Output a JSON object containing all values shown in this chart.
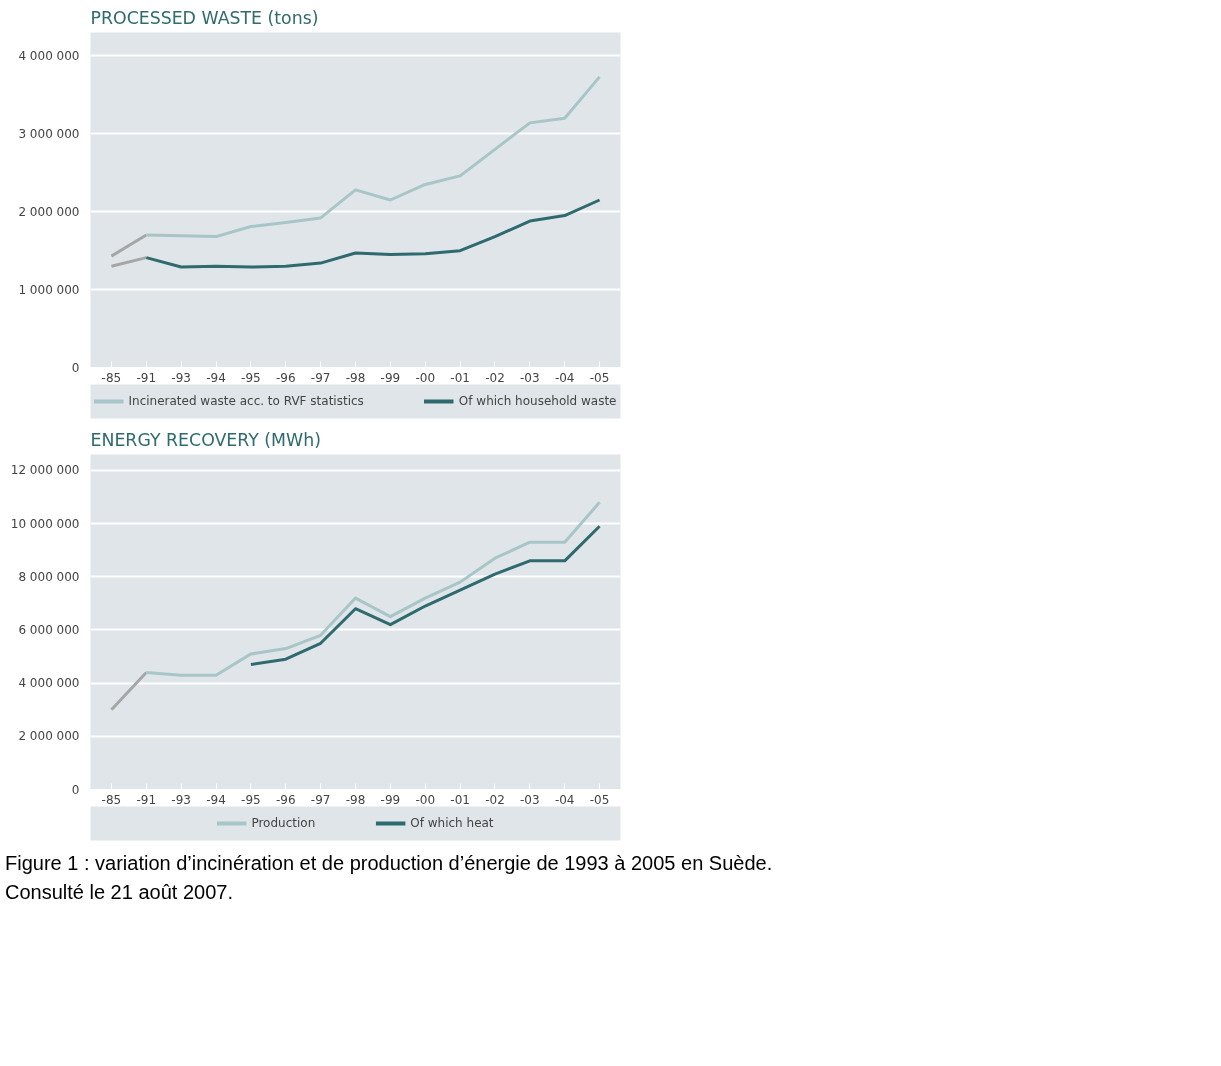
{
  "chart_data": [
    {
      "type": "line",
      "title": "PROCESSED WASTE (tons)",
      "categories": [
        "-85",
        "-91",
        "-93",
        "-94",
        "-95",
        "-96",
        "-97",
        "-98",
        "-99",
        "-00",
        "-01",
        "-02",
        "-03",
        "-04",
        "-05"
      ],
      "series": [
        {
          "color": "#a6a6a6",
          "values": [
            1430000,
            1700000,
            null,
            null,
            null,
            null,
            null,
            null,
            null,
            null,
            null,
            null,
            null,
            null,
            null
          ]
        },
        {
          "color": "#a6a6a6",
          "values": [
            1300000,
            1410000,
            null,
            null,
            null,
            null,
            null,
            null,
            null,
            null,
            null,
            null,
            null,
            null,
            null
          ]
        },
        {
          "name": "Incinerated waste acc. to RVF statistics",
          "color": "#a8c6c8",
          "values": [
            null,
            1700000,
            1690000,
            1680000,
            1810000,
            1860000,
            1920000,
            2280000,
            2150000,
            2350000,
            2460000,
            2800000,
            3140000,
            3200000,
            3730000
          ]
        },
        {
          "name": "Of which household waste",
          "color": "#2f6b6e",
          "values": [
            null,
            1410000,
            1290000,
            1300000,
            1290000,
            1300000,
            1340000,
            1470000,
            1450000,
            1460000,
            1500000,
            1680000,
            1880000,
            1950000,
            2150000
          ]
        }
      ],
      "ylim": [
        0,
        4300000
      ],
      "yticks": [
        0,
        {
          "value": 1000000,
          "label": "1 000 000"
        },
        {
          "value": 2000000,
          "label": "2 000 000"
        },
        {
          "value": 3000000,
          "label": "3 000 000"
        },
        {
          "value": 4000000,
          "label": "4 000 000"
        }
      ],
      "grid": "y",
      "legend": "bottom"
    },
    {
      "type": "line",
      "title": "ENERGY RECOVERY (MWh)",
      "categories": [
        "-85",
        "-91",
        "-93",
        "-94",
        "-95",
        "-96",
        "-97",
        "-98",
        "-99",
        "-00",
        "-01",
        "-02",
        "-03",
        "-04",
        "-05"
      ],
      "series": [
        {
          "color": "#a6a6a6",
          "values": [
            3000000,
            4400000,
            null,
            null,
            null,
            null,
            null,
            null,
            null,
            null,
            null,
            null,
            null,
            null,
            null
          ]
        },
        {
          "name": "Production",
          "color": "#a8c6c8",
          "values": [
            null,
            4400000,
            4300000,
            4300000,
            5100000,
            5300000,
            5800000,
            7200000,
            6500000,
            7200000,
            7800000,
            8700000,
            9300000,
            9300000,
            10800000
          ]
        },
        {
          "name": "Of which heat",
          "color": "#2f6b6e",
          "values": [
            null,
            null,
            null,
            null,
            4700000,
            4900000,
            5500000,
            6800000,
            6200000,
            6900000,
            7500000,
            8100000,
            8600000,
            8600000,
            9900000
          ]
        }
      ],
      "ylim": [
        0,
        12600000
      ],
      "yticks": [
        0,
        {
          "value": 2000000,
          "label": "2 000 000"
        },
        {
          "value": 4000000,
          "label": "4 000 000"
        },
        {
          "value": 6000000,
          "label": "6 000 000"
        },
        {
          "value": 8000000,
          "label": "8 000 000"
        },
        {
          "value": 10000000,
          "label": "10 000 000"
        },
        {
          "value": 12000000,
          "label": "12 000 000"
        }
      ],
      "grid": "y",
      "legend": "bottom",
      "annotations": [
        "Figure 1 : variation d’incinération et de production d’énergie de 1993 à 2005 en Suède.",
        "Consulté le 21 août 2007."
      ]
    }
  ]
}
